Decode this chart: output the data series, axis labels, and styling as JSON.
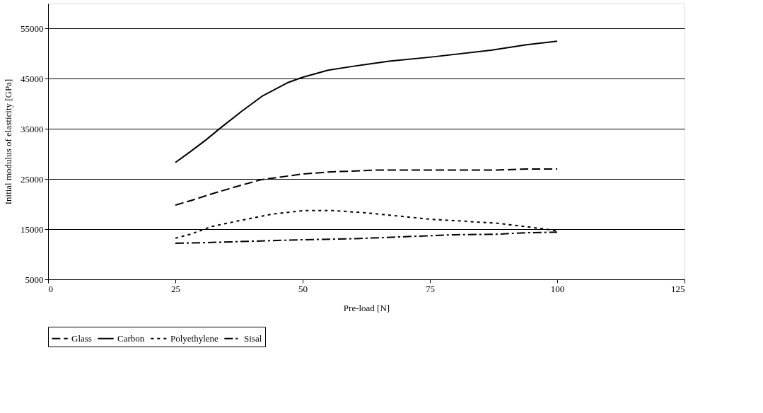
{
  "chart_data": {
    "type": "line",
    "xlabel": "Pre-load [N]",
    "ylabel": "Initial modulus of elasticity [GPa]",
    "xlim": [
      0,
      125
    ],
    "xticks": [
      0,
      25,
      50,
      75,
      100,
      125
    ],
    "ylim": [
      5000,
      60000
    ],
    "yticks": [
      5000,
      15000,
      25000,
      35000,
      45000,
      55000
    ],
    "grid": "y",
    "legend": "bottom",
    "marker": "none",
    "series": [
      {
        "name": "Glass",
        "color": "#000000",
        "line_style": "dashed",
        "x": [
          25,
          28,
          32,
          38,
          42,
          50,
          55,
          65,
          75,
          88,
          94,
          100
        ],
        "values": [
          19800,
          20700,
          22000,
          23800,
          24900,
          26000,
          26400,
          26800,
          26800,
          26800,
          27000,
          27000
        ]
      },
      {
        "name": "Carbon",
        "color": "#000000",
        "line_style": "solid",
        "x": [
          25,
          28,
          31,
          34,
          38,
          42,
          47,
          50,
          55,
          60,
          67,
          75,
          87,
          94,
          100
        ],
        "values": [
          28300,
          30500,
          32800,
          35300,
          38500,
          41500,
          44200,
          45300,
          46700,
          47500,
          48500,
          49300,
          50700,
          51800,
          52500
        ]
      },
      {
        "name": "Polyethylene",
        "color": "#000000",
        "line_style": "dotted",
        "x": [
          25,
          28,
          32,
          38,
          44,
          50,
          56,
          62,
          68,
          75,
          88,
          94,
          100
        ],
        "values": [
          13200,
          14000,
          15500,
          16800,
          18000,
          18700,
          18700,
          18300,
          17700,
          17000,
          16200,
          15500,
          14700
        ]
      },
      {
        "name": "Sisal",
        "color": "#000000",
        "line_style": "dashdot",
        "x": [
          25,
          30,
          40,
          50,
          60,
          70,
          80,
          88,
          94,
          100
        ],
        "values": [
          12200,
          12300,
          12600,
          12900,
          13100,
          13500,
          13900,
          14000,
          14300,
          14400
        ]
      }
    ]
  }
}
